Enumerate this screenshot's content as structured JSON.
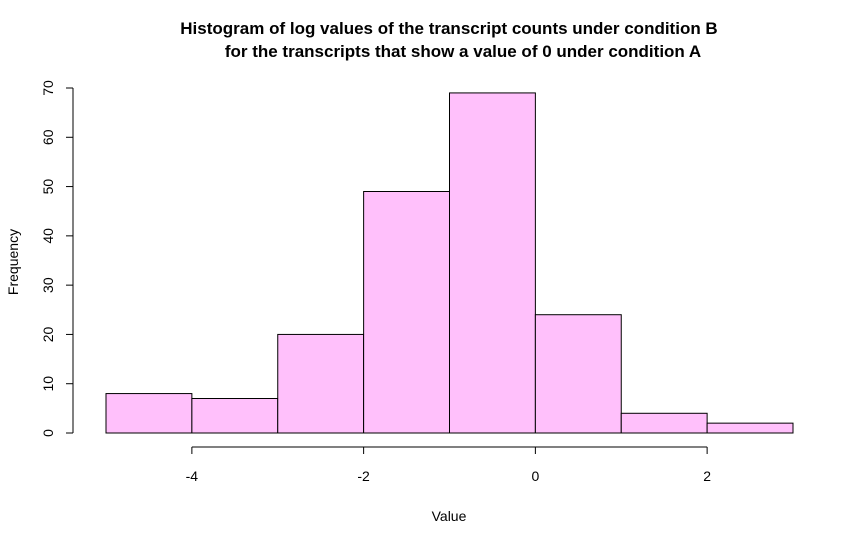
{
  "chart_data": {
    "type": "bar",
    "title_lines": [
      "Histogram of log values of the transcript counts under condition B",
      "for the transcripts that show a value of 0 under condition A"
    ],
    "xlabel": "Value",
    "ylabel": "Frequency",
    "bins": [
      {
        "from": -5,
        "to": -4,
        "count": 8
      },
      {
        "from": -4,
        "to": -3,
        "count": 7
      },
      {
        "from": -3,
        "to": -2,
        "count": 20
      },
      {
        "from": -2,
        "to": -1,
        "count": 49
      },
      {
        "from": -1,
        "to": 0,
        "count": 69
      },
      {
        "from": 0,
        "to": 1,
        "count": 24
      },
      {
        "from": 1,
        "to": 2,
        "count": 4
      },
      {
        "from": 2,
        "to": 3,
        "count": 2
      }
    ],
    "xlim": [
      -5,
      3
    ],
    "ylim": [
      0,
      70
    ],
    "x_ticks": [
      -4,
      -2,
      0,
      2
    ],
    "x_tick_labels": [
      "-4",
      "-2",
      "0",
      "2"
    ],
    "y_ticks": [
      0,
      10,
      20,
      30,
      40,
      50,
      60,
      70
    ],
    "y_tick_labels": [
      "0",
      "10",
      "20",
      "30",
      "40",
      "50",
      "60",
      "70"
    ],
    "bar_fill": "#ffc0fb",
    "bar_stroke": "#000000",
    "grid": false
  }
}
